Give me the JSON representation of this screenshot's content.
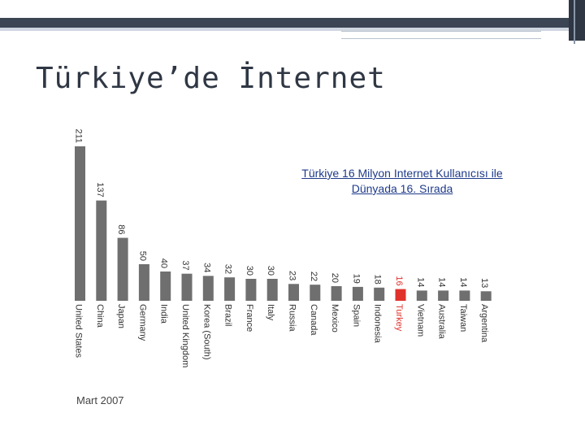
{
  "slide": {
    "title": "Türkiye’de İnternet",
    "subtitle_line1": "Türkiye 16 Milyon Internet Kullanıcısı ile",
    "subtitle_line2": "Dünyada 16. Sırada",
    "source_note": "Mart 2007"
  },
  "colors": {
    "bar": "#6f6f6f",
    "highlight": "#e0312b",
    "header_dark": "#3c4554",
    "subtitle": "#1e3a8a"
  },
  "chart_data": {
    "type": "bar",
    "orientation": "vertical",
    "title": "",
    "xlabel": "",
    "ylabel": "",
    "categories": [
      "United States",
      "China",
      "Japan",
      "Germany",
      "India",
      "United Kingdom",
      "Korea (South)",
      "Brazil",
      "France",
      "Italy",
      "Russia",
      "Canada",
      "Mexico",
      "Spain",
      "Indonesia",
      "Turkey",
      "Vietnam",
      "Australia",
      "Taiwan",
      "Argentina"
    ],
    "value_labels": [
      "211",
      "137",
      "86",
      "50",
      "40",
      "37",
      "34",
      "32",
      "30",
      "30",
      "23",
      "22",
      "20",
      "19",
      "18",
      "16",
      "14",
      "14",
      "14",
      "13"
    ],
    "values": [
      211,
      137,
      86,
      50,
      40,
      37,
      34,
      32,
      30,
      30,
      23,
      22,
      20,
      19,
      18,
      16,
      14,
      14,
      14,
      13
    ],
    "highlight_category": "Turkey",
    "ylim": [
      0,
      211
    ],
    "grid": false,
    "legend": "none"
  }
}
